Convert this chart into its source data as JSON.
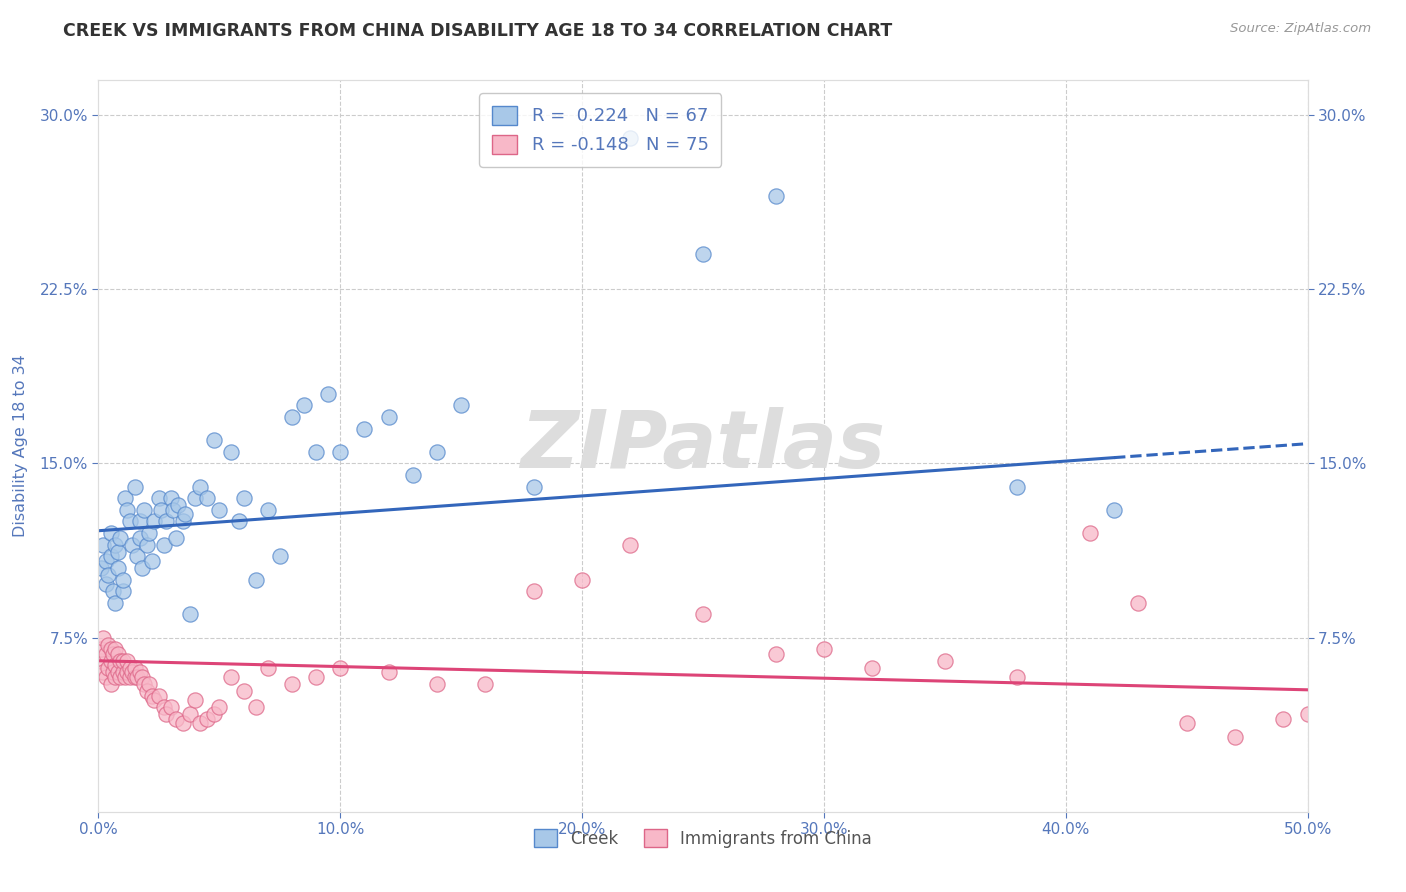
{
  "title": "CREEK VS IMMIGRANTS FROM CHINA DISABILITY AGE 18 TO 34 CORRELATION CHART",
  "source": "Source: ZipAtlas.com",
  "ylabel": "Disability Age 18 to 34",
  "xmin": 0.0,
  "xmax": 0.5,
  "ymin": 0.0,
  "ymax": 0.315,
  "yticks": [
    0.075,
    0.15,
    0.225,
    0.3
  ],
  "ytick_labels": [
    "7.5%",
    "15.0%",
    "22.5%",
    "30.0%"
  ],
  "xticks": [
    0.0,
    0.1,
    0.2,
    0.3,
    0.4,
    0.5
  ],
  "xtick_labels": [
    "0.0%",
    "10.0%",
    "20.0%",
    "30.0%",
    "40.0%",
    "50.0%"
  ],
  "creek_color": "#a8c8e8",
  "creek_edge_color": "#5588cc",
  "immigrants_color": "#f8b8c8",
  "immigrants_edge_color": "#dd6688",
  "creek_line_color": "#3366bb",
  "immigrants_line_color": "#dd4477",
  "creek_R": 0.224,
  "creek_N": 67,
  "immigrants_R": -0.148,
  "immigrants_N": 75,
  "creek_intercept": 0.121,
  "creek_slope": 0.075,
  "immigrants_intercept": 0.065,
  "immigrants_slope": -0.025,
  "creek_x": [
    0.001,
    0.002,
    0.003,
    0.003,
    0.004,
    0.005,
    0.005,
    0.006,
    0.007,
    0.007,
    0.008,
    0.008,
    0.009,
    0.01,
    0.01,
    0.011,
    0.012,
    0.013,
    0.014,
    0.015,
    0.016,
    0.017,
    0.017,
    0.018,
    0.019,
    0.02,
    0.021,
    0.022,
    0.023,
    0.025,
    0.026,
    0.027,
    0.028,
    0.03,
    0.031,
    0.032,
    0.033,
    0.035,
    0.036,
    0.038,
    0.04,
    0.042,
    0.045,
    0.048,
    0.05,
    0.055,
    0.058,
    0.06,
    0.065,
    0.07,
    0.075,
    0.08,
    0.085,
    0.09,
    0.095,
    0.1,
    0.11,
    0.12,
    0.13,
    0.14,
    0.15,
    0.18,
    0.22,
    0.25,
    0.28,
    0.38,
    0.42
  ],
  "creek_y": [
    0.105,
    0.115,
    0.108,
    0.098,
    0.102,
    0.12,
    0.11,
    0.095,
    0.09,
    0.115,
    0.105,
    0.112,
    0.118,
    0.095,
    0.1,
    0.135,
    0.13,
    0.125,
    0.115,
    0.14,
    0.11,
    0.118,
    0.125,
    0.105,
    0.13,
    0.115,
    0.12,
    0.108,
    0.125,
    0.135,
    0.13,
    0.115,
    0.125,
    0.135,
    0.13,
    0.118,
    0.132,
    0.125,
    0.128,
    0.085,
    0.135,
    0.14,
    0.135,
    0.16,
    0.13,
    0.155,
    0.125,
    0.135,
    0.1,
    0.13,
    0.11,
    0.17,
    0.175,
    0.155,
    0.18,
    0.155,
    0.165,
    0.17,
    0.145,
    0.155,
    0.175,
    0.14,
    0.29,
    0.24,
    0.265,
    0.14,
    0.13
  ],
  "immigrants_x": [
    0.001,
    0.001,
    0.002,
    0.002,
    0.003,
    0.003,
    0.004,
    0.004,
    0.005,
    0.005,
    0.005,
    0.006,
    0.006,
    0.007,
    0.007,
    0.007,
    0.008,
    0.008,
    0.009,
    0.009,
    0.01,
    0.01,
    0.011,
    0.012,
    0.012,
    0.013,
    0.013,
    0.014,
    0.015,
    0.015,
    0.016,
    0.017,
    0.018,
    0.019,
    0.02,
    0.021,
    0.022,
    0.023,
    0.025,
    0.027,
    0.028,
    0.03,
    0.032,
    0.035,
    0.038,
    0.04,
    0.042,
    0.045,
    0.048,
    0.05,
    0.055,
    0.06,
    0.065,
    0.07,
    0.08,
    0.09,
    0.1,
    0.12,
    0.14,
    0.16,
    0.18,
    0.2,
    0.22,
    0.25,
    0.28,
    0.3,
    0.32,
    0.35,
    0.38,
    0.41,
    0.43,
    0.45,
    0.47,
    0.49,
    0.5
  ],
  "immigrants_y": [
    0.065,
    0.07,
    0.06,
    0.075,
    0.058,
    0.068,
    0.062,
    0.072,
    0.055,
    0.065,
    0.07,
    0.06,
    0.068,
    0.058,
    0.063,
    0.07,
    0.06,
    0.068,
    0.058,
    0.065,
    0.06,
    0.065,
    0.058,
    0.06,
    0.065,
    0.058,
    0.062,
    0.06,
    0.058,
    0.062,
    0.058,
    0.06,
    0.058,
    0.055,
    0.052,
    0.055,
    0.05,
    0.048,
    0.05,
    0.045,
    0.042,
    0.045,
    0.04,
    0.038,
    0.042,
    0.048,
    0.038,
    0.04,
    0.042,
    0.045,
    0.058,
    0.052,
    0.045,
    0.062,
    0.055,
    0.058,
    0.062,
    0.06,
    0.055,
    0.055,
    0.095,
    0.1,
    0.115,
    0.085,
    0.068,
    0.07,
    0.062,
    0.065,
    0.058,
    0.12,
    0.09,
    0.038,
    0.032,
    0.04,
    0.042
  ],
  "background_color": "#ffffff",
  "grid_color": "#cccccc",
  "axis_color": "#5577bb",
  "watermark": "ZIPatlas",
  "watermark_color": "#dddddd",
  "legend_text_color": "#5577bb"
}
